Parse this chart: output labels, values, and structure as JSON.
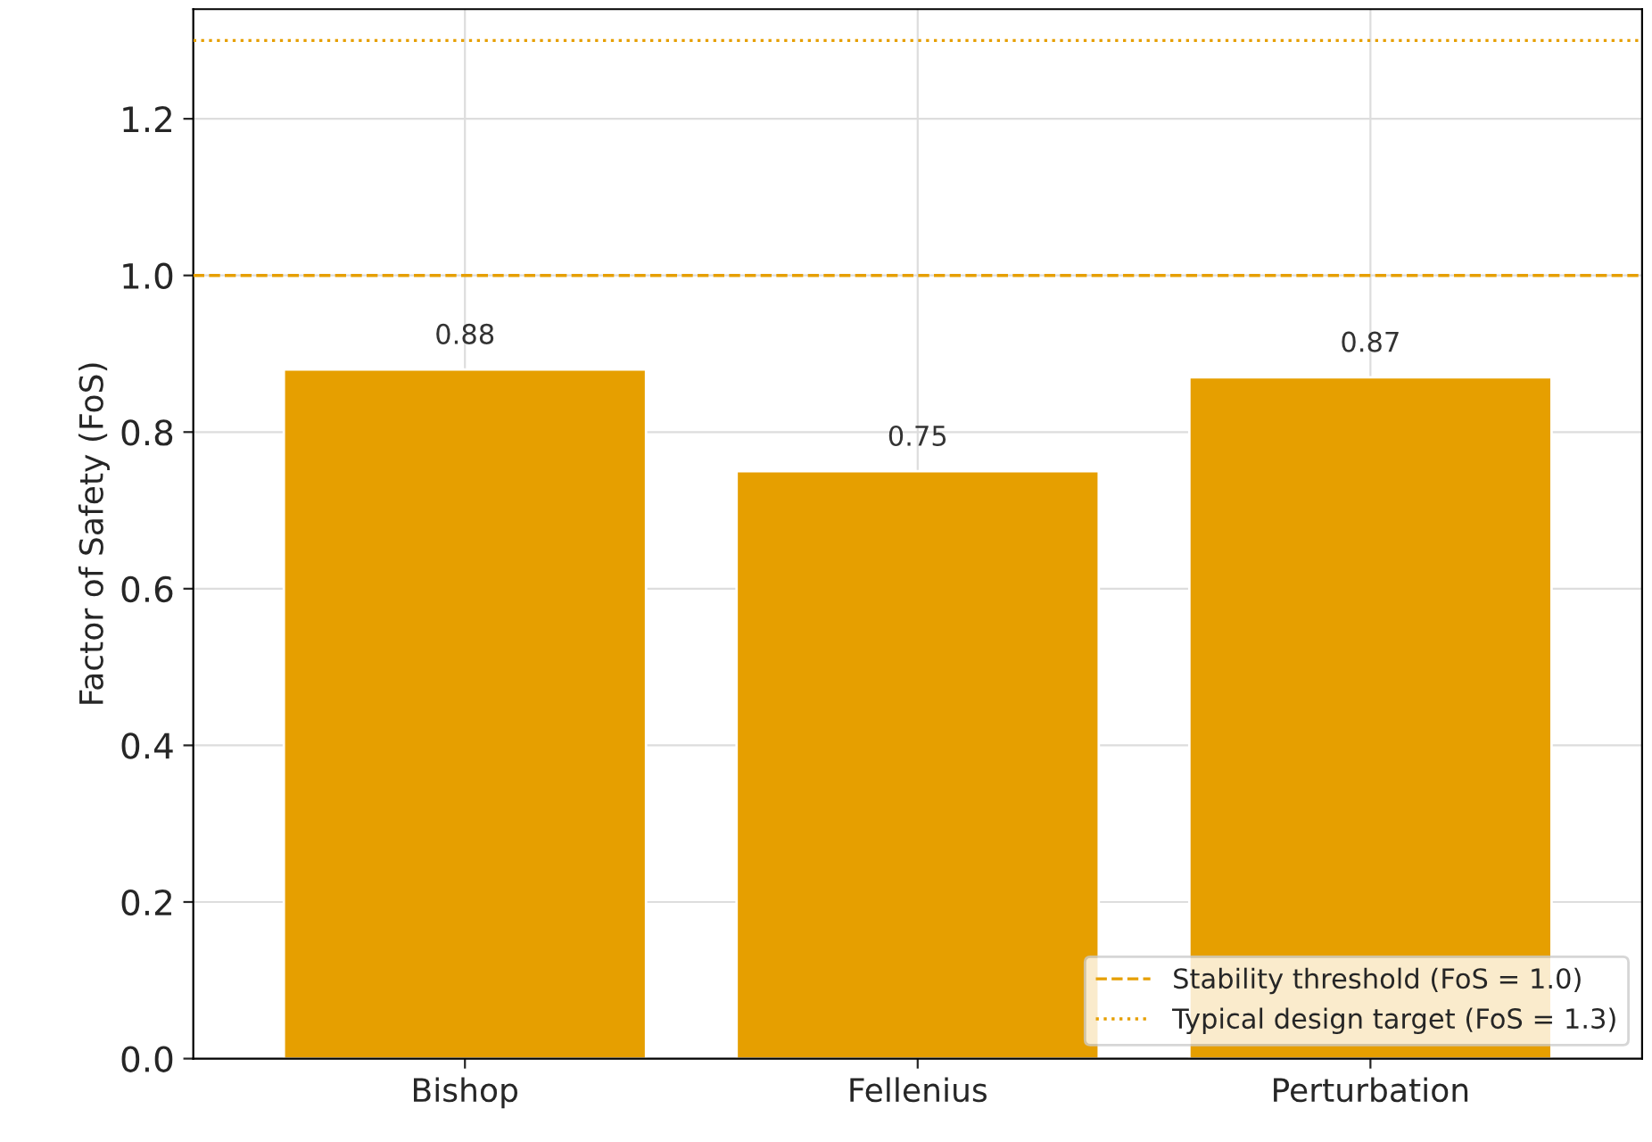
{
  "chart_data": {
    "type": "bar",
    "ylabel": "Factor of Safety (FoS)",
    "categories": [
      "Bishop",
      "Fellenius",
      "Perturbation"
    ],
    "values": [
      0.88,
      0.75,
      0.87
    ],
    "color": "#e69f00",
    "data_labels": true,
    "ylim": [
      0,
      1.34
    ],
    "yticks": [
      {
        "value": 0,
        "label": "0.0"
      },
      0.2,
      0.4,
      0.6,
      0.8,
      {
        "value": 1,
        "label": "1.0"
      },
      1.2
    ],
    "grid": true,
    "legend": "lower right",
    "ref_lines": [
      {
        "axis": "y",
        "value": 1.0,
        "label": "Stability threshold (FoS = 1.0)",
        "color": "#e69f00",
        "line_style": "dashed"
      },
      {
        "axis": "y",
        "value": 1.3,
        "label": "Typical design target (FoS = 1.3)",
        "color": "#e69f00",
        "line_style": "dotted"
      }
    ]
  }
}
